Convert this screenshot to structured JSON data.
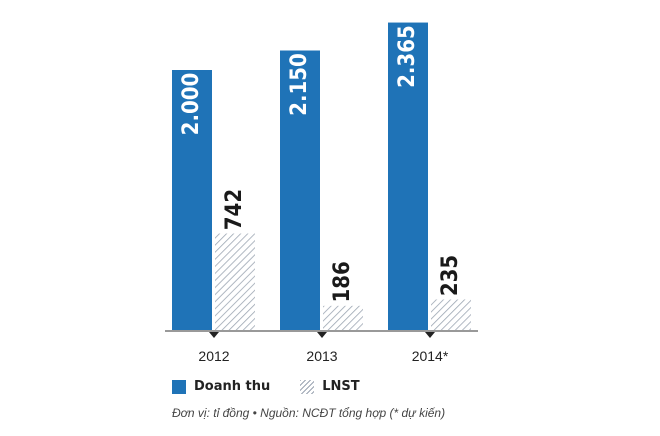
{
  "chart_data": {
    "type": "bar",
    "categories": [
      "2012",
      "2013",
      "2014*"
    ],
    "series": [
      {
        "name": "Doanh thu",
        "values": [
          2000,
          2150,
          2365
        ],
        "labels": [
          "2.000",
          "2.150",
          "2.365"
        ],
        "color": "#1f73b7",
        "fill": "solid"
      },
      {
        "name": "LNST",
        "values": [
          742,
          186,
          235
        ],
        "labels": [
          "742",
          "186",
          "235"
        ],
        "color": "#9ca6b3",
        "fill": "hatched"
      }
    ],
    "note": "Đơn vị: tỉ đồng • Nguồn: NCĐT tổng hợp (* dự kiến)",
    "grid": false,
    "legend_position": "bottom-left"
  },
  "legend": {
    "revenue_label": "Doanh thu",
    "profit_label": "LNST"
  },
  "footnote": "Đơn vị: tỉ đồng • Nguồn: NCĐT tổng hợp (* dự kiến)"
}
